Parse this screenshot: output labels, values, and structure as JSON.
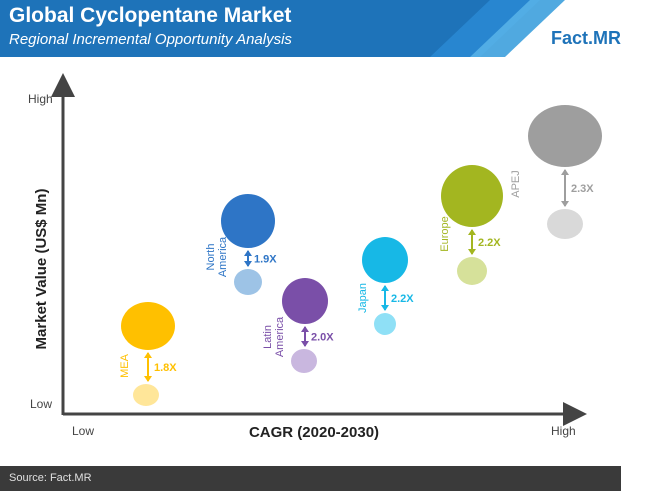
{
  "header": {
    "title": "Global Cyclopentane Market",
    "subtitle": "Regional Incremental Opportunity Analysis",
    "logo_text": "Fact",
    "logo_suffix": ".MR"
  },
  "footer": {
    "source": "Source: Fact.MR"
  },
  "colors": {
    "header": "#1e73b9",
    "footer": "#3a3a3a"
  },
  "chart_data": {
    "type": "scatter",
    "xlabel": "CAGR (2020-2030)",
    "ylabel": "Market Value (US$ Mn)",
    "x_low_label": "Low",
    "x_high_label": "High",
    "y_low_label": "Low",
    "y_high_label": "High",
    "regions": [
      {
        "label": "MEA",
        "multiplier": "1.8X",
        "color": "#ffc000",
        "small_color": "#ffe699"
      },
      {
        "label": "North America",
        "multiplier": "1.9X",
        "color": "#2e75c6",
        "small_color": "#9dc3e6"
      },
      {
        "label": "Latin America",
        "multiplier": "2.0X",
        "color": "#7a4fa8",
        "small_color": "#c9b7df"
      },
      {
        "label": "Japan",
        "multiplier": "2.2X",
        "color": "#17b8e6",
        "small_color": "#8fe0f6"
      },
      {
        "label": "Europe",
        "multiplier": "2.2X",
        "color": "#a3b620",
        "small_color": "#d6e19a"
      },
      {
        "label": "APEJ",
        "multiplier": "2.3X",
        "color": "#9e9e9e",
        "small_color": "#d9d9d9"
      }
    ]
  }
}
